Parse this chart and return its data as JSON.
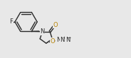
{
  "bg_color": "#e8e8e8",
  "bond_color": "#2a2a2a",
  "O_color": "#b8860b",
  "F_color": "#2a2a2a",
  "N_color": "#2a2a2a",
  "figsize": [
    1.84,
    0.82
  ],
  "dpi": 100,
  "xlim": [
    0,
    18
  ],
  "ylim": [
    0,
    8
  ]
}
